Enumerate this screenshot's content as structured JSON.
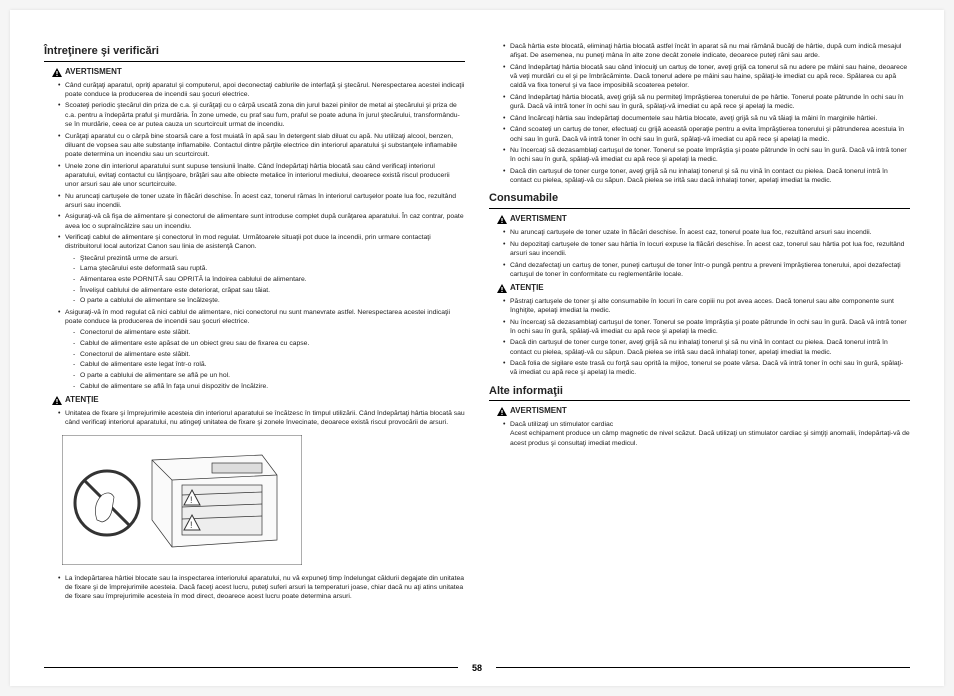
{
  "pageNumber": "58",
  "sections": {
    "maintenance": {
      "title": "Întreţinere şi verificări",
      "warn1Label": "AVERTISMENT",
      "warn1Items": [
        "Când curăţaţi aparatul, opriţi aparatul şi computerul, apoi deconectaţi cablurile de interfaţă şi ştecărul. Nerespectarea acestei indicaţii poate conduce la producerea de incendii sau şocuri electrice.",
        "Scoateţi periodic ştecărul din priza de c.a. şi curăţaţi cu o cârpă uscată zona din jurul bazei pinilor de metal ai ştecărului şi priza de c.a. pentru a îndepărta praful şi murdăria. În zone umede, cu praf sau fum, praful se poate aduna în jurul ştecărului, transformându-se în murdărie, ceea ce ar putea cauza un scurtcircuit urmat de incendiu.",
        "Curăţaţi aparatul cu o cârpă bine stoarsă care a fost muiată în apă sau în detergent slab diluat cu apă. Nu utilizaţi alcool, benzen, diluant de vopsea sau alte substanţe inflamabile. Contactul dintre părţile electrice din interiorul aparatului şi substanţele inflamabile poate determina un incendiu sau un scurtcircuit.",
        "Unele zone din interiorul aparatului sunt supuse tensiunii înalte. Când îndepărtaţi hârtia blocată sau când verificaţi interiorul aparatului, evitaţi contactul cu lănţişoare, brăţări sau alte obiecte metalice în interiorul mediului, deoarece există riscul producerii unor arsuri sau ale unor scurtcircuite.",
        "Nu aruncaţi cartuşele de toner uzate în flăcări deschise. În acest caz, tonerul rămas în interiorul cartuşelor poate lua foc, rezultând arsuri sau incendii.",
        "Asiguraţi-vă că fişa de alimentare şi conectorul de alimentare sunt introduse complet după curăţarea aparatului. În caz contrar, poate avea loc o supraîncălzire sau un incendiu.",
        "Verificaţi cablul de alimentare şi conectorul în mod regulat. Următoarele situaţii pot duce la incendii, prin urmare contactaţi distribuitorul local autorizat Canon sau linia de asistenţă Canon."
      ],
      "warn1Sub1": [
        "Ştecărul prezintă urme de arsuri.",
        "Lama ştecărului este deformată sau ruptă.",
        "Alimentarea este PORNITĂ sau OPRITĂ la îndoirea cablului de alimentare.",
        "Învelişul cablului de alimentare este deteriorat, crăpat sau tăiat.",
        "O parte a cablului de alimentare se încălzeşte."
      ],
      "warn1Item8": "Asiguraţi-vă în mod regulat că nici cablul de alimentare, nici conectorul nu sunt manevrate astfel. Nerespectarea acestei indicaţii poate conduce la producerea de incendii sau şocuri electrice.",
      "warn1Sub2": [
        "Conectorul de alimentare este slăbit.",
        "Cablul de alimentare este apăsat de un obiect greu sau de fixarea cu capse.",
        "Conectorul de alimentare este slăbit.",
        "Cablul de alimentare este legat într-o rolă.",
        "O parte a cablului de alimentare se află pe un hol.",
        "Cablul de alimentare se află în faţa unui dispozitiv de încălzire."
      ],
      "cautionLabel": "ATENŢIE",
      "cautionItems": [
        "Unitatea de fixare şi împrejurimile acesteia din interiorul aparatului se încălzesc în timpul utilizării. Când îndepărtaţi hârtia blocată sau când verificaţi interiorul aparatului, nu atingeţi unitatea de fixare şi zonele învecinate, deoarece există riscul provocării de arsuri."
      ],
      "afterFigure": [
        "La îndepărtarea hârtiei blocate sau la inspectarea interiorului aparatului, nu vă expuneţi timp îndelungat căldurii degajate din unitatea de fixare şi de împrejurimile acesteia. Dacă faceţi acest lucru, puteţi suferi arsuri la temperaturi joase, chiar dacă nu aţi atins unitatea de fixare sau împrejurimile acesteia în mod direct, deoarece acest lucru poate determina arsuri."
      ]
    },
    "col2top": [
      "Dacă hârtia este blocată, eliminaţi hârtia blocată astfel încât în aparat să nu mai rămână bucăţi de hârtie, după cum indică mesajul afişat. De asemenea, nu puneţi mâna în alte zone decât zonele indicate, deoarece puteţi răni sau arde.",
      "Când îndepărtaţi hârtia blocată sau când înlocuiţi un cartuş de toner, aveţi grijă ca tonerul să nu adere pe mâini sau haine, deoarece vă veţi murdări cu el şi pe îmbrăcăminte. Dacă tonerul adere pe mâini sau haine, spălaţi-le imediat cu apă rece. Spălarea cu apă caldă va fixa tonerul şi va face imposibilă scoaterea petelor.",
      "Când îndepărtaţi hârtia blocată, aveţi grijă să nu permiteţi împrăştierea tonerului de pe hârtie. Tonerul poate pătrunde în ochi sau în gură. Dacă vă intră toner în ochi sau în gură, spălaţi-vă imediat cu apă rece şi apelaţi la medic.",
      "Când încărcaţi hârtia sau îndepărtaţi documentele sau hârtia blocate, aveţi grijă să nu vă tăiaţi la mâini în marginile hârtiei.",
      "Când scoateţi un cartuş de toner, efectuaţi cu grijă această operaţie pentru a evita împrăştierea tonerului şi pătrunderea acestuia în ochi sau în gură. Dacă vă intră toner în ochi sau în gură, spălaţi-vă imediat cu apă rece şi apelaţi la medic.",
      "Nu încercaţi să dezasamblaţi cartuşul de toner. Tonerul se poate împrăştia şi poate pătrunde în ochi sau în gură. Dacă vă intră toner în ochi sau în gură, spălaţi-vă imediat cu apă rece şi apelaţi la medic.",
      "Dacă din cartuşul de toner curge toner, aveţi grijă să nu inhalaţi tonerul şi să nu vină în contact cu pielea. Dacă tonerul intră în contact cu pielea, spălaţi-vă cu săpun. Dacă pielea se irită sau dacă inhalaţi toner, apelaţi imediat la medic."
    ],
    "consumables": {
      "title": "Consumabile",
      "warnLabel": "AVERTISMENT",
      "warnItems": [
        "Nu aruncaţi cartuşele de toner uzate în flăcări deschise. În acest caz, tonerul poate lua foc, rezultând arsuri sau incendii.",
        "Nu depozitaţi cartuşele de toner sau hârtia în locuri expuse la flăcări deschise. În acest caz, tonerul sau hârtia pot lua foc, rezultând arsuri sau incendii.",
        "Când dezafectaţi un cartuş de toner, puneţi cartuşul de toner într-o pungă pentru a preveni împrăştierea tonerului, apoi dezafectaţi cartuşul de toner în conformitate cu reglementările locale."
      ],
      "cautionLabel": "ATENŢIE",
      "cautionItems": [
        "Păstraţi cartuşele de toner şi alte consumabile în locuri în care copiii nu pot avea acces. Dacă tonerul sau alte componente sunt înghiţite, apelaţi imediat la medic.",
        "Nu încercaţi să dezasamblaţi cartuşul de toner. Tonerul se poate împrăştia şi poate pătrunde în ochi sau în gură. Dacă vă intră toner în ochi sau în gură, spălaţi-vă imediat cu apă rece şi apelaţi la medic.",
        "Dacă din cartuşul de toner curge toner, aveţi grijă să nu inhalaţi tonerul şi să nu vină în contact cu pielea. Dacă tonerul intră în contact cu pielea, spălaţi-vă cu săpun. Dacă pielea se irită sau dacă inhalaţi toner, apelaţi imediat la medic.",
        "Dacă folia de sigilare este trasă cu forţă sau oprită la mijloc, tonerul se poate vărsa. Dacă vă intră toner în ochi sau în gură, spălaţi-vă imediat cu apă rece şi apelaţi la medic."
      ]
    },
    "other": {
      "title": "Alte informaţii",
      "warnLabel": "AVERTISMENT",
      "items": [
        "Dacă utilizaţi un stimulator cardiac<br>Acest echipament produce un câmp magnetic de nivel scăzut. Dacă utilizaţi un stimulator cardiac şi simţiţi anomalii, îndepărtaţi-vă de acest produs şi consultaţi imediat medicul."
      ]
    }
  }
}
